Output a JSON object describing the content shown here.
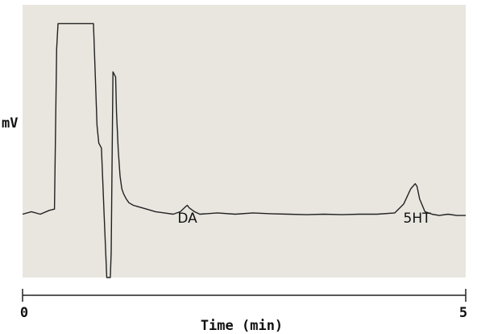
{
  "chart_data": {
    "type": "line",
    "ylabel": "mV",
    "xlabel": "Time (min)",
    "xlim": [
      0,
      5
    ],
    "x_ticks": [
      {
        "value": 0,
        "label": "0"
      },
      {
        "value": 5,
        "label": "5"
      }
    ],
    "grid": false,
    "plot_background": "#e8e6df",
    "line_color": "#222222",
    "annotations": [
      {
        "text": "DA",
        "x": 1.86
      },
      {
        "text": "5HT",
        "x": 4.45
      }
    ],
    "series": [
      {
        "x": [
          0.0,
          0.1,
          0.2,
          0.3,
          0.36,
          0.385,
          0.4,
          0.43,
          0.6,
          0.75,
          0.8,
          0.84,
          0.86,
          0.89,
          0.92,
          0.95,
          0.99,
          1.0,
          1.02,
          1.05,
          1.06,
          1.08,
          1.1,
          1.12,
          1.14,
          1.17,
          1.2,
          1.25,
          1.3,
          1.4,
          1.5,
          1.6,
          1.7,
          1.78,
          1.84,
          1.86,
          1.88,
          1.94,
          2.0,
          2.2,
          2.4,
          2.6,
          2.8,
          3.0,
          3.2,
          3.4,
          3.6,
          3.8,
          4.0,
          4.2,
          4.3,
          4.38,
          4.43,
          4.45,
          4.48,
          4.54,
          4.62,
          4.7,
          4.8,
          4.9,
          5.0
        ],
        "y": [
          3.0,
          3.1,
          3.0,
          3.15,
          3.2,
          9.5,
          10.5,
          10.5,
          10.5,
          10.5,
          10.5,
          6.5,
          5.8,
          5.6,
          3.0,
          -0.5,
          -1.0,
          1.5,
          8.6,
          8.4,
          7.0,
          5.5,
          4.5,
          4.0,
          3.8,
          3.6,
          3.45,
          3.35,
          3.3,
          3.2,
          3.1,
          3.05,
          3.0,
          3.1,
          3.3,
          3.35,
          3.25,
          3.1,
          3.0,
          3.05,
          3.0,
          3.05,
          3.02,
          3.0,
          2.98,
          3.0,
          2.98,
          3.0,
          3.0,
          3.05,
          3.4,
          4.0,
          4.2,
          4.1,
          3.6,
          3.1,
          3.0,
          2.95,
          3.0,
          2.95,
          2.95
        ]
      }
    ]
  }
}
